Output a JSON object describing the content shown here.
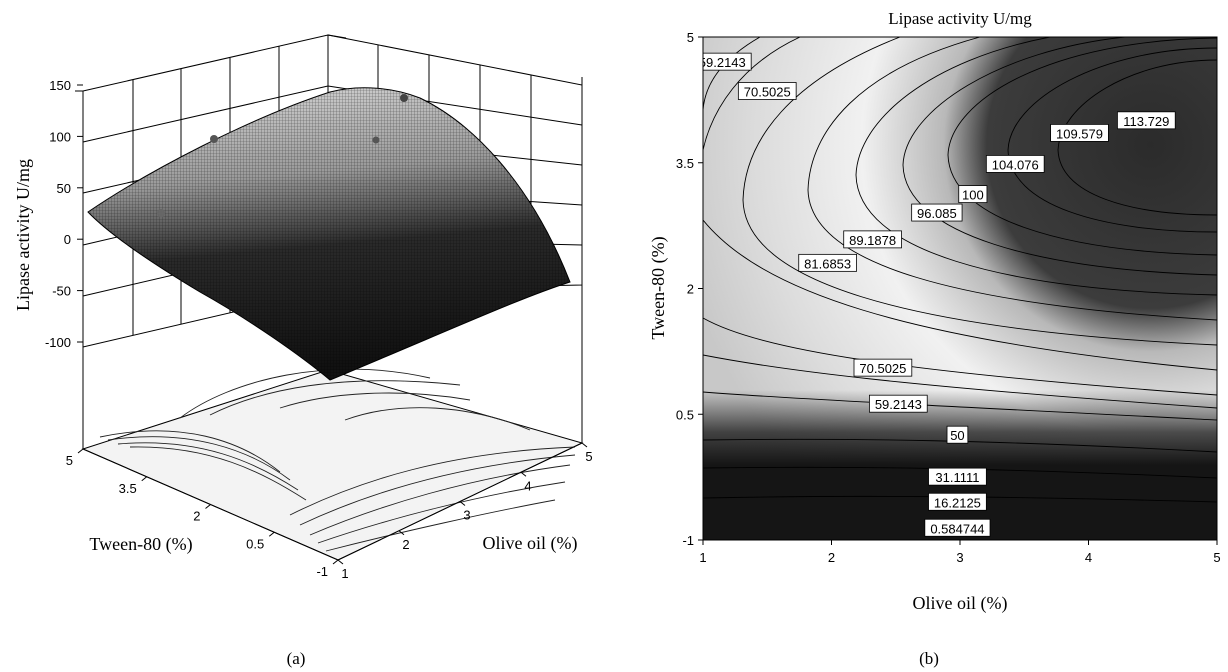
{
  "chart_data": [
    {
      "type": "surface3d",
      "panel_label": "(a)",
      "zlabel": "Lipase activity U/mg",
      "xlabel": "Olive oil (%)",
      "ylabel": "Tween-80 (%)",
      "x_ticks": [
        "1",
        "2",
        "3",
        "4",
        "5"
      ],
      "y_ticks": [
        "-1",
        "0.5",
        "2",
        "3.5",
        "5"
      ],
      "z_ticks": [
        "150",
        "100",
        "50",
        "0",
        "-50",
        "-100"
      ],
      "xlim": [
        1,
        5
      ],
      "ylim": [
        -1,
        5
      ],
      "zlim": [
        -150,
        150
      ],
      "surface_color": "grayscale",
      "floor_contours": true,
      "grid": true
    },
    {
      "type": "contour",
      "panel_label": "(b)",
      "title": "Lipase activity U/mg",
      "xlabel": "Olive oil (%)",
      "ylabel": "Tween-80 (%)",
      "x_ticks": [
        "1",
        "2",
        "3",
        "4",
        "5"
      ],
      "y_ticks": [
        "-1",
        "0.5",
        "2",
        "3.5",
        "5"
      ],
      "xlim": [
        1,
        5
      ],
      "ylim": [
        -1,
        5
      ],
      "contour_levels": [
        "0.584744",
        "16.2125",
        "31.1111",
        "50",
        "59.2143",
        "70.5025",
        "81.6853",
        "89.1878",
        "96.085",
        "100",
        "104.076",
        "109.579",
        "113.729"
      ],
      "contour_labels": [
        {
          "text": "59.2143",
          "x": 1.15,
          "y": 4.7
        },
        {
          "text": "70.5025",
          "x": 1.5,
          "y": 4.35
        },
        {
          "text": "113.729",
          "x": 4.45,
          "y": 4.0
        },
        {
          "text": "109.579",
          "x": 3.93,
          "y": 3.85
        },
        {
          "text": "104.076",
          "x": 3.43,
          "y": 3.48
        },
        {
          "text": "100",
          "x": 3.1,
          "y": 3.12
        },
        {
          "text": "96.085",
          "x": 2.82,
          "y": 2.9
        },
        {
          "text": "89.1878",
          "x": 2.32,
          "y": 2.58
        },
        {
          "text": "81.6853",
          "x": 1.97,
          "y": 2.3
        },
        {
          "text": "70.5025",
          "x": 2.4,
          "y": 1.05
        },
        {
          "text": "59.2143",
          "x": 2.52,
          "y": 0.62
        },
        {
          "text": "50",
          "x": 2.98,
          "y": 0.25
        },
        {
          "text": "31.1111",
          "x": 2.98,
          "y": -0.25
        },
        {
          "text": "16.2125",
          "x": 2.98,
          "y": -0.55
        },
        {
          "text": "0.584744",
          "x": 2.98,
          "y": -0.86
        }
      ],
      "colormap": "grayscale"
    }
  ]
}
